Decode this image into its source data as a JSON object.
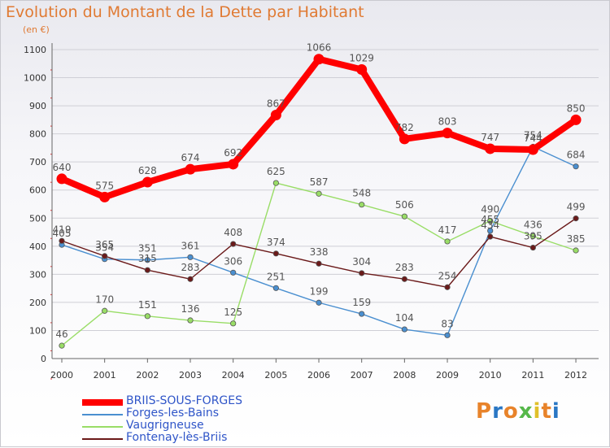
{
  "title": "Evolution du Montant de la Dette par Habitant",
  "subtitle": "(en €)",
  "logo": {
    "text": "Proxiti",
    "colors": [
      "#e8832a",
      "#2a77c4",
      "#e8832a",
      "#56b84a",
      "#e0c02a",
      "#e8832a",
      "#2a77c4"
    ]
  },
  "chart_data": {
    "type": "line",
    "title": "Evolution du Montant de la Dette par Habitant",
    "subtitle": "(en €)",
    "xlabel": "",
    "ylabel": "",
    "x": [
      "2000",
      "2001",
      "2002",
      "2003",
      "2004",
      "2005",
      "2006",
      "2007",
      "2008",
      "2009",
      "2010",
      "2011",
      "2012"
    ],
    "ylim": [
      0,
      1100
    ],
    "yticks": [
      0,
      100,
      200,
      300,
      400,
      500,
      600,
      700,
      800,
      900,
      1000,
      1100
    ],
    "grid": "horizontal",
    "legend_position": "bottom-left",
    "series": [
      {
        "name": "BRIIS-SOUS-FORGES",
        "color": "#ff0000",
        "emphasis": true,
        "values": [
          640,
          575,
          628,
          674,
          692,
          867,
          1066,
          1029,
          782,
          803,
          747,
          744,
          850
        ],
        "labels": [
          "640",
          "575",
          "628",
          "674",
          "692",
          "867",
          "1066",
          "1029",
          "782",
          "803",
          "747",
          "744",
          "850"
        ]
      },
      {
        "name": "Forges-les-Bains",
        "color": "#4a8fd0",
        "emphasis": false,
        "values": [
          405,
          354,
          351,
          361,
          306,
          251,
          199,
          159,
          104,
          83,
          455,
          754,
          684
        ],
        "labels": [
          "405",
          "354",
          "351",
          "361",
          "306",
          "251",
          "199",
          "159",
          "104",
          "83",
          "455",
          "754",
          "684"
        ]
      },
      {
        "name": "Vaugrigneuse",
        "color": "#99dd66",
        "emphasis": false,
        "values": [
          46,
          170,
          151,
          136,
          125,
          625,
          587,
          548,
          506,
          417,
          490,
          436,
          385
        ],
        "labels": [
          "46",
          "170",
          "151",
          "136",
          "125",
          "625",
          "587",
          "548",
          "506",
          "417",
          "490",
          "436",
          "385"
        ]
      },
      {
        "name": "Fontenay-lès-Briis",
        "color": "#6b1a1a",
        "emphasis": false,
        "values": [
          419,
          365,
          315,
          283,
          408,
          374,
          338,
          304,
          283,
          254,
          434,
          395,
          499
        ],
        "labels": [
          "419",
          "365",
          "315",
          "283",
          "408",
          "374",
          "338",
          "304",
          "283",
          "254",
          "434",
          "395",
          "499"
        ]
      }
    ]
  }
}
